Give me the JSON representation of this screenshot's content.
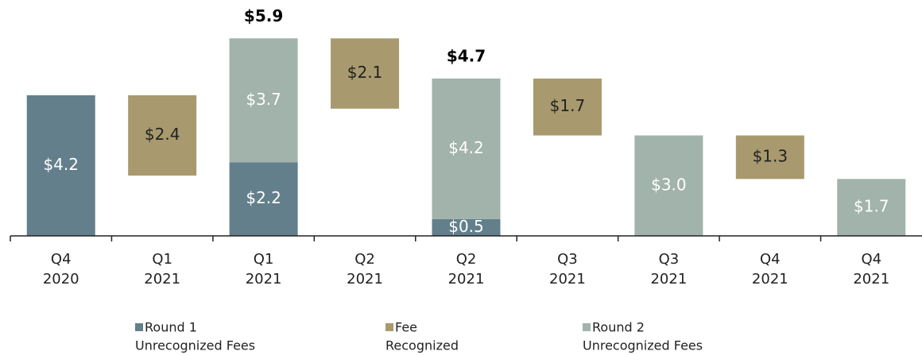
{
  "chart_data": {
    "type": "waterfall",
    "categories": [
      [
        "Q4",
        "2020"
      ],
      [
        "Q1",
        "2021"
      ],
      [
        "Q1",
        "2021"
      ],
      [
        "Q2",
        "2021"
      ],
      [
        "Q2",
        "2021"
      ],
      [
        "Q3",
        "2021"
      ],
      [
        "Q3",
        "2021"
      ],
      [
        "Q4",
        "2021"
      ],
      [
        "Q4",
        "2021"
      ]
    ],
    "series": [
      {
        "name": [
          "Round 1",
          "Unrecognized Fees"
        ],
        "color": "#637f8c",
        "role": "stack",
        "values": [
          4.2,
          null,
          2.2,
          null,
          0.5,
          null,
          null,
          null,
          null
        ],
        "value_labels": [
          "$4.2",
          null,
          "$2.2",
          null,
          "$0.5",
          null,
          null,
          null,
          null
        ]
      },
      {
        "name": [
          "Fee",
          "Recognized"
        ],
        "color": "#a89a6e",
        "role": "decrease",
        "values": [
          null,
          2.4,
          null,
          2.1,
          null,
          1.7,
          null,
          1.3,
          null
        ],
        "value_labels": [
          null,
          "$2.4",
          null,
          "$2.1",
          null,
          "$1.7",
          null,
          "$1.3",
          null
        ]
      },
      {
        "name": [
          "Round 2",
          "Unrecognized Fees"
        ],
        "color": "#a1b3aa",
        "role": "stack",
        "values": [
          null,
          null,
          3.7,
          null,
          4.2,
          null,
          3.0,
          null,
          1.7
        ],
        "value_labels": [
          null,
          null,
          "$3.7",
          null,
          "$4.2",
          null,
          "$3.0",
          null,
          "$1.7"
        ]
      }
    ],
    "totals": [
      null,
      null,
      5.9,
      null,
      4.7,
      null,
      null,
      null,
      null
    ],
    "total_labels": [
      null,
      null,
      "$5.9",
      null,
      "$4.7",
      null,
      null,
      null,
      null
    ],
    "ylim": [
      0,
      6.5
    ]
  }
}
